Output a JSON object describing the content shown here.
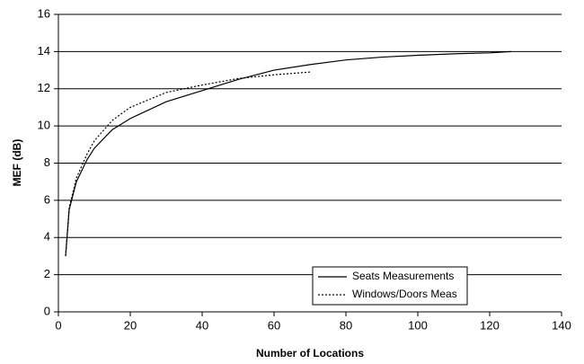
{
  "chart_data": {
    "type": "line",
    "xlabel": "Number of Locations",
    "ylabel": "MEF (dB)",
    "series": [
      {
        "name": "Seats Measurements",
        "color": "#000000",
        "dash": "solid",
        "x": [
          2,
          3,
          5,
          8,
          10,
          15,
          20,
          30,
          40,
          50,
          60,
          70,
          80,
          90,
          100,
          110,
          120,
          126
        ],
        "values": [
          3,
          5.5,
          7,
          8.2,
          8.8,
          9.8,
          10.4,
          11.3,
          11.9,
          12.5,
          13.0,
          13.3,
          13.55,
          13.7,
          13.8,
          13.88,
          13.93,
          14.0
        ]
      },
      {
        "name": "Windows/Doors Meas",
        "color": "#000000",
        "dash": "dotted",
        "x": [
          2,
          3,
          5,
          8,
          10,
          15,
          20,
          30,
          40,
          50,
          60,
          70
        ],
        "values": [
          3,
          5.6,
          7.2,
          8.5,
          9.2,
          10.3,
          11.0,
          11.8,
          12.2,
          12.55,
          12.75,
          12.9
        ]
      }
    ],
    "xlim": [
      0,
      140
    ],
    "xticks": [
      0,
      20,
      40,
      60,
      80,
      100,
      120,
      140
    ],
    "ylim": [
      0,
      16
    ],
    "yticks": [
      0,
      2,
      4,
      6,
      8,
      10,
      12,
      14,
      16
    ],
    "grid": true,
    "legend": "lower right"
  }
}
